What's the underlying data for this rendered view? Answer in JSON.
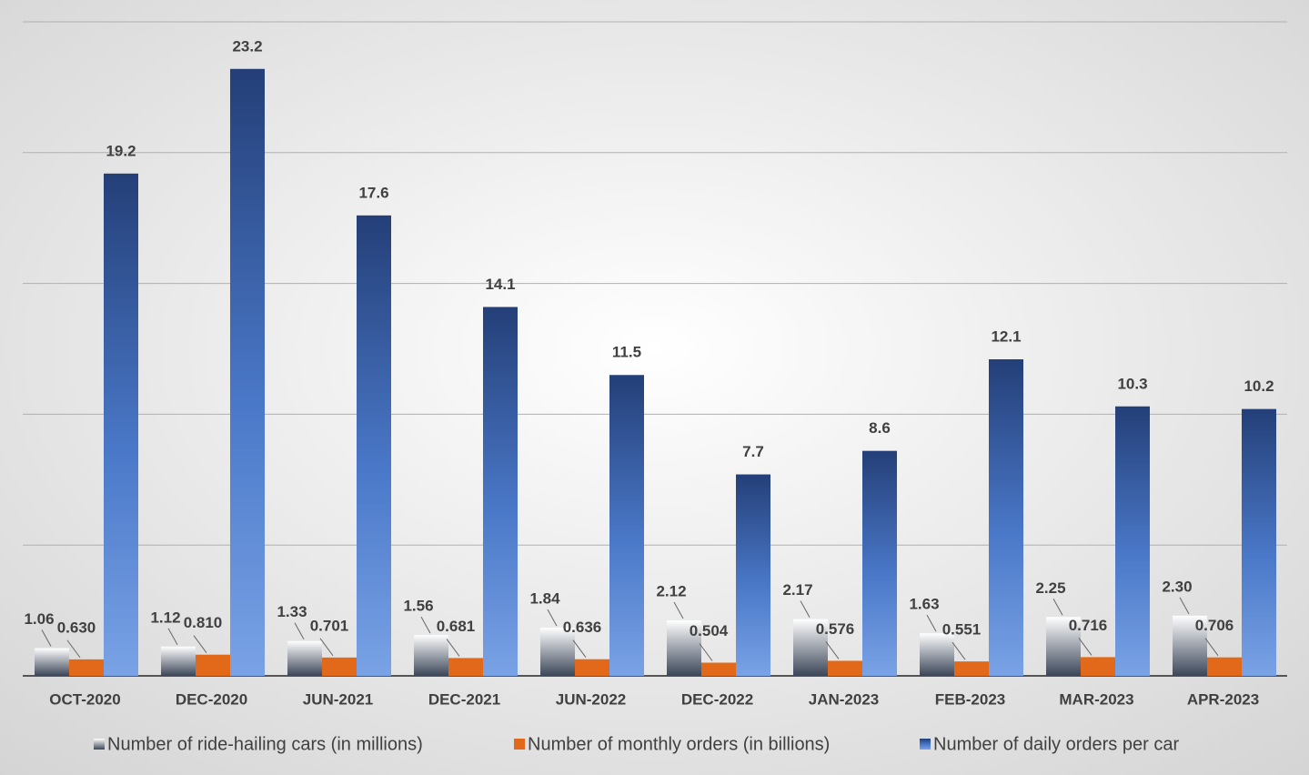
{
  "chart_data": {
    "type": "bar",
    "categories": [
      "OCT-2020",
      "DEC-2020",
      "JUN-2021",
      "DEC-2021",
      "JUN-2022",
      "DEC-2022",
      "JAN-2023",
      "FEB-2023",
      "MAR-2023",
      "APR-2023"
    ],
    "series": [
      {
        "name": "Number of ride-hailing cars (in millions)",
        "color": "#3b4658",
        "values": [
          1.06,
          1.12,
          1.33,
          1.56,
          1.84,
          2.12,
          2.17,
          1.63,
          2.25,
          2.3
        ],
        "value_labels": [
          "1.06",
          "1.12",
          "1.33",
          "1.56",
          "1.84",
          "2.12",
          "2.17",
          "1.63",
          "2.25",
          "2.30"
        ]
      },
      {
        "name": "Number of monthly orders (in billions)",
        "color": "#e2691a",
        "values": [
          0.63,
          0.81,
          0.701,
          0.681,
          0.636,
          0.504,
          0.576,
          0.551,
          0.716,
          0.706
        ],
        "value_labels": [
          "0.630",
          "0.810",
          "0.701",
          "0.681",
          "0.636",
          "0.504",
          "0.576",
          "0.551",
          "0.716",
          "0.706"
        ]
      },
      {
        "name": "Number of daily orders per car",
        "color": "#243f78",
        "values": [
          19.2,
          23.2,
          17.6,
          14.1,
          11.5,
          7.7,
          8.6,
          12.1,
          10.3,
          10.2
        ]
      }
    ],
    "ylim": [
      0,
      25
    ],
    "yticks": [
      0,
      5,
      10,
      15,
      20,
      25
    ],
    "grid": true
  }
}
